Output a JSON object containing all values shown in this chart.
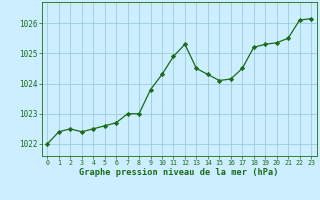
{
  "x": [
    0,
    1,
    2,
    3,
    4,
    5,
    6,
    7,
    8,
    9,
    10,
    11,
    12,
    13,
    14,
    15,
    16,
    17,
    18,
    19,
    20,
    21,
    22,
    23
  ],
  "y": [
    1022.0,
    1022.4,
    1022.5,
    1022.4,
    1022.5,
    1022.6,
    1022.7,
    1023.0,
    1023.0,
    1023.8,
    1024.3,
    1024.9,
    1025.3,
    1024.5,
    1024.3,
    1024.1,
    1024.15,
    1024.5,
    1025.2,
    1025.3,
    1025.35,
    1025.5,
    1026.1,
    1026.15
  ],
  "line_color": "#1a6b1a",
  "marker": "D",
  "marker_size": 2.2,
  "bg_color": "#cceeff",
  "grid_color": "#99ccdd",
  "xlabel": "Graphe pression niveau de la mer (hPa)",
  "xlabel_color": "#1a6b1a",
  "tick_color": "#1a6b1a",
  "ylabel_ticks": [
    1022,
    1023,
    1024,
    1025,
    1026
  ],
  "xlim": [
    -0.5,
    23.5
  ],
  "ylim": [
    1021.6,
    1026.7
  ]
}
